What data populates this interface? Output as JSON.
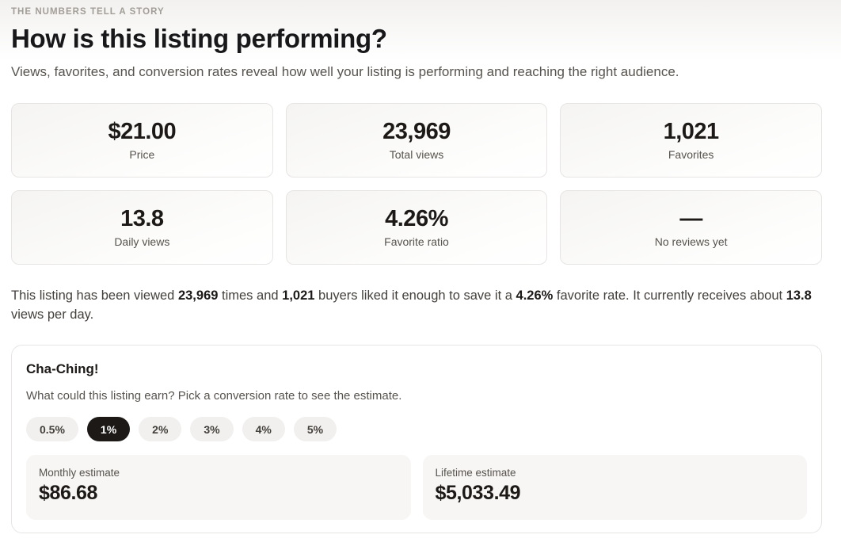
{
  "header": {
    "eyebrow": "THE NUMBERS TELL A STORY",
    "title": "How is this listing performing?",
    "subtitle": "Views, favorites, and conversion rates reveal how well your listing is performing and reaching the right audience."
  },
  "stats": [
    {
      "value": "$21.00",
      "label": "Price"
    },
    {
      "value": "23,969",
      "label": "Total views"
    },
    {
      "value": "1,021",
      "label": "Favorites"
    },
    {
      "value": "13.8",
      "label": "Daily views"
    },
    {
      "value": "4.26%",
      "label": "Favorite ratio"
    },
    {
      "value": "—",
      "label": "No reviews yet"
    }
  ],
  "summary": {
    "segments": [
      {
        "text": "This listing has been viewed ",
        "bold": false
      },
      {
        "text": "23,969",
        "bold": true
      },
      {
        "text": " times and ",
        "bold": false
      },
      {
        "text": "1,021",
        "bold": true
      },
      {
        "text": " buyers liked it enough to save it a ",
        "bold": false
      },
      {
        "text": "4.26%",
        "bold": true
      },
      {
        "text": " favorite rate. It currently receives about ",
        "bold": false
      },
      {
        "text": "13.8",
        "bold": true
      },
      {
        "text": " views per day.",
        "bold": false
      }
    ]
  },
  "estimator": {
    "title": "Cha-Ching!",
    "description": "What could this listing earn? Pick a conversion rate to see the estimate.",
    "rates": [
      {
        "label": "0.5%",
        "selected": false
      },
      {
        "label": "1%",
        "selected": true
      },
      {
        "label": "2%",
        "selected": false
      },
      {
        "label": "3%",
        "selected": false
      },
      {
        "label": "4%",
        "selected": false
      },
      {
        "label": "5%",
        "selected": false
      }
    ],
    "estimates": [
      {
        "label": "Monthly estimate",
        "value": "$86.68"
      },
      {
        "label": "Lifetime estimate",
        "value": "$5,033.49"
      }
    ]
  },
  "colors": {
    "accent_dark": "#1c1917",
    "muted_text": "#57534e",
    "eyebrow_text": "#a29d97",
    "card_border": "#e7e5e4",
    "pill_bg": "#f1f0ee",
    "pill_selected_bg": "#1c1917",
    "estimate_box_bg": "#f7f6f4"
  }
}
